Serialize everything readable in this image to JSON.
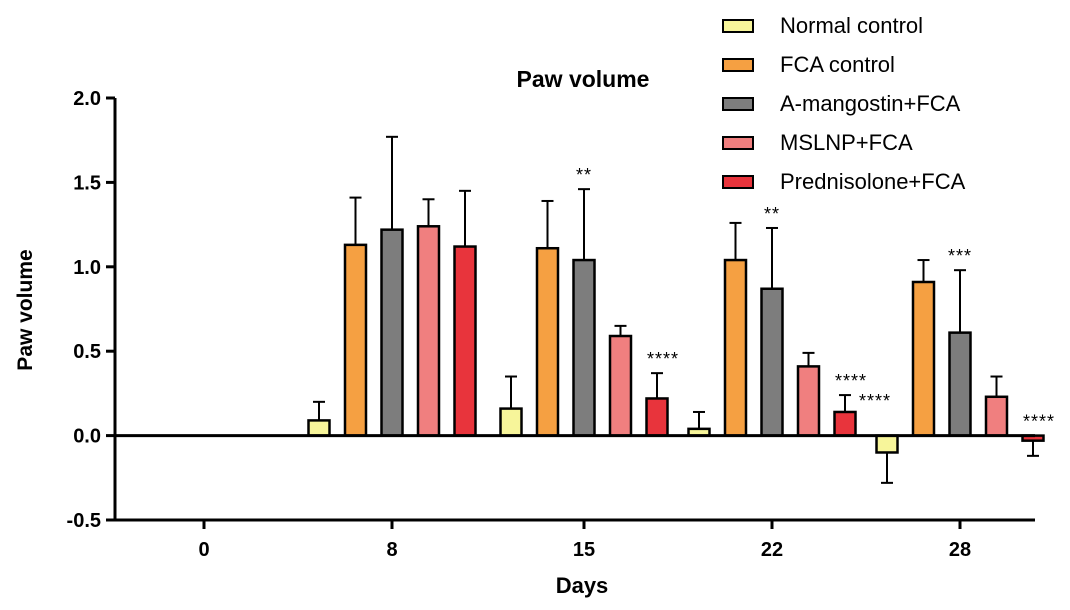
{
  "chart_data": {
    "type": "bar",
    "title": "Paw volume",
    "xlabel": "Days",
    "ylabel": "Paw volume",
    "ylim": [
      -0.5,
      2.0
    ],
    "yticks": [
      "2.0",
      "1.5",
      "1.0",
      "0.5",
      "0.0",
      "-0.5"
    ],
    "ytick_values": [
      2.0,
      1.5,
      1.0,
      0.5,
      0.0,
      -0.5
    ],
    "categories": [
      "0",
      "8",
      "15",
      "22",
      "28"
    ],
    "legend_position": "top-right",
    "grid": false,
    "series": [
      {
        "name": "Normal control",
        "color": "#f7f59a",
        "values": [
          0,
          0.09,
          0.16,
          0.04,
          -0.1
        ],
        "errors": [
          0,
          0.11,
          0.19,
          0.1,
          0.18
        ],
        "annotations": [
          "",
          "",
          "",
          "",
          ""
        ]
      },
      {
        "name": "FCA control",
        "color": "#f5a042",
        "values": [
          0,
          1.13,
          1.11,
          1.04,
          0.91
        ],
        "errors": [
          0,
          0.28,
          0.28,
          0.22,
          0.13
        ],
        "annotations": [
          "",
          "",
          "",
          "",
          ""
        ]
      },
      {
        "name": "A-mangostin+FCA",
        "color": "#7d7d7d",
        "values": [
          0,
          1.22,
          1.04,
          0.87,
          0.61
        ],
        "errors": [
          0,
          0.55,
          0.42,
          0.36,
          0.37
        ],
        "annotations": [
          "",
          "",
          "**",
          "**",
          "***"
        ]
      },
      {
        "name": "MSLNP+FCA",
        "color": "#f07f7f",
        "values": [
          0,
          1.24,
          0.59,
          0.41,
          0.23
        ],
        "errors": [
          0,
          0.16,
          0.06,
          0.08,
          0.12
        ],
        "annotations": [
          "",
          "",
          "",
          "",
          ""
        ]
      },
      {
        "name": "Prednisolone+FCA",
        "color": "#e8343c",
        "values": [
          0,
          1.12,
          0.22,
          0.14,
          -0.03
        ],
        "errors": [
          0,
          0.33,
          0.15,
          0.1,
          0.09
        ],
        "annotations": [
          "",
          "",
          "****",
          "****",
          "****"
        ]
      }
    ],
    "extra_annotations": [
      {
        "category_index": 3,
        "series_index": 4,
        "text": "****",
        "slot": 2
      }
    ]
  }
}
